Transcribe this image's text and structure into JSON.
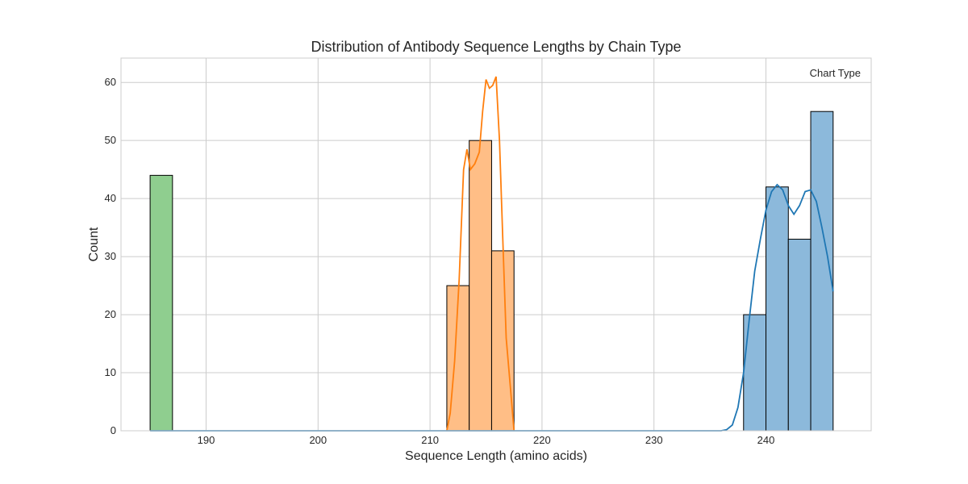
{
  "chart_data": {
    "type": "bar",
    "title": "Distribution of Antibody Sequence Lengths by Chain Type",
    "xlabel": "Sequence Length (amino acids)",
    "ylabel": "Count",
    "xlim": [
      182.4,
      249.4
    ],
    "ylim": [
      0,
      64.2
    ],
    "x_ticks": [
      190,
      200,
      210,
      220,
      230,
      240
    ],
    "y_ticks": [
      0,
      10,
      20,
      30,
      40,
      50,
      60
    ],
    "grid": true,
    "legend": {
      "title": "Chart Type",
      "placement": "top-right"
    },
    "series": [
      {
        "color": "#2ca02c",
        "fill": "#8fce8f",
        "bins": [
          {
            "x0": 185,
            "x1": 187,
            "count": 44
          }
        ],
        "kde": []
      },
      {
        "color": "#ff7f0e",
        "fill": "#ffbe86",
        "bins": [
          {
            "x0": 211.5,
            "x1": 213.5,
            "count": 25
          },
          {
            "x0": 213.5,
            "x1": 215.5,
            "count": 50
          },
          {
            "x0": 215.5,
            "x1": 217.5,
            "count": 31
          }
        ],
        "kde": [
          [
            211.5,
            0
          ],
          [
            211.8,
            3
          ],
          [
            212.2,
            12
          ],
          [
            212.6,
            26
          ],
          [
            213,
            45
          ],
          [
            213.3,
            48.5
          ],
          [
            213.6,
            45
          ],
          [
            214,
            46
          ],
          [
            214.4,
            48
          ],
          [
            214.7,
            55
          ],
          [
            215,
            60.5
          ],
          [
            215.3,
            59
          ],
          [
            215.6,
            59.5
          ],
          [
            215.9,
            61
          ],
          [
            216.2,
            50
          ],
          [
            216.5,
            33
          ],
          [
            216.8,
            16
          ],
          [
            217.2,
            7
          ],
          [
            217.5,
            0
          ]
        ]
      },
      {
        "color": "#1f77b4",
        "fill": "#8cb9db",
        "bins": [
          {
            "x0": 238,
            "x1": 240,
            "count": 20
          },
          {
            "x0": 240,
            "x1": 242,
            "count": 42
          },
          {
            "x0": 242,
            "x1": 244,
            "count": 33
          },
          {
            "x0": 244,
            "x1": 246,
            "count": 55
          }
        ],
        "kde": [
          [
            185,
            0
          ],
          [
            236,
            0
          ],
          [
            236.5,
            0.2
          ],
          [
            237,
            1
          ],
          [
            237.5,
            4
          ],
          [
            238,
            10
          ],
          [
            238.5,
            19
          ],
          [
            239,
            27.5
          ],
          [
            239.5,
            33
          ],
          [
            240,
            38
          ],
          [
            240.5,
            41.2
          ],
          [
            241,
            42.4
          ],
          [
            241.5,
            41.5
          ],
          [
            242,
            38.8
          ],
          [
            242.5,
            37.3
          ],
          [
            243,
            38.8
          ],
          [
            243.5,
            41.2
          ],
          [
            244,
            41.5
          ],
          [
            244.5,
            39.5
          ],
          [
            245,
            35
          ],
          [
            245.5,
            30
          ],
          [
            246,
            24
          ]
        ]
      }
    ]
  }
}
